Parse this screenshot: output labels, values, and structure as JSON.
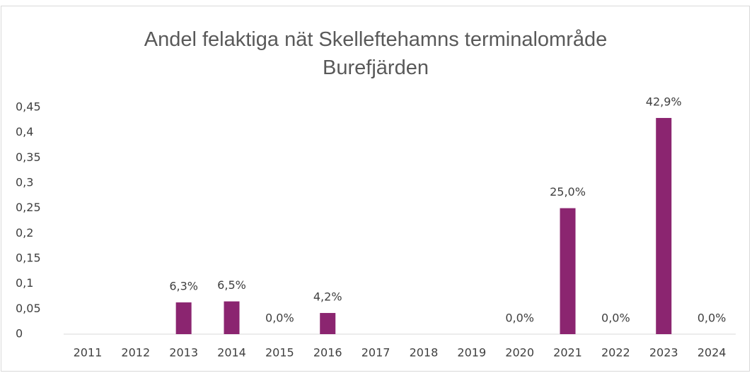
{
  "chart_data": {
    "type": "bar",
    "title": "Andel felaktiga nät Skelleftehamns terminalområde Burefjärden",
    "categories": [
      "2011",
      "2012",
      "2013",
      "2014",
      "2015",
      "2016",
      "2017",
      "2018",
      "2019",
      "2020",
      "2021",
      "2022",
      "2023",
      "2024"
    ],
    "values": [
      null,
      null,
      0.063,
      0.065,
      0,
      0.042,
      null,
      null,
      null,
      0,
      0.25,
      0,
      0.429,
      0
    ],
    "value_labels": [
      null,
      null,
      "6,3%",
      "6,5%",
      "0,0%",
      "4,2%",
      null,
      null,
      null,
      "0,0%",
      "25,0%",
      "0,0%",
      "42,9%",
      "0,0%"
    ],
    "color": "#8b2570",
    "ylim": [
      0,
      0.45
    ],
    "yticks": [
      0,
      {
        "value": 0.05,
        "label": "0,05"
      },
      {
        "value": 0.1,
        "label": "0,1"
      },
      {
        "value": 0.15,
        "label": "0,15"
      },
      {
        "value": 0.2,
        "label": "0,2"
      },
      {
        "value": 0.25,
        "label": "0,25"
      },
      {
        "value": 0.3,
        "label": "0,3"
      },
      {
        "value": 0.35,
        "label": "0,35"
      },
      {
        "value": 0.4,
        "label": "0,4"
      },
      {
        "value": 0.45,
        "label": "0,45"
      }
    ],
    "grid": false
  }
}
